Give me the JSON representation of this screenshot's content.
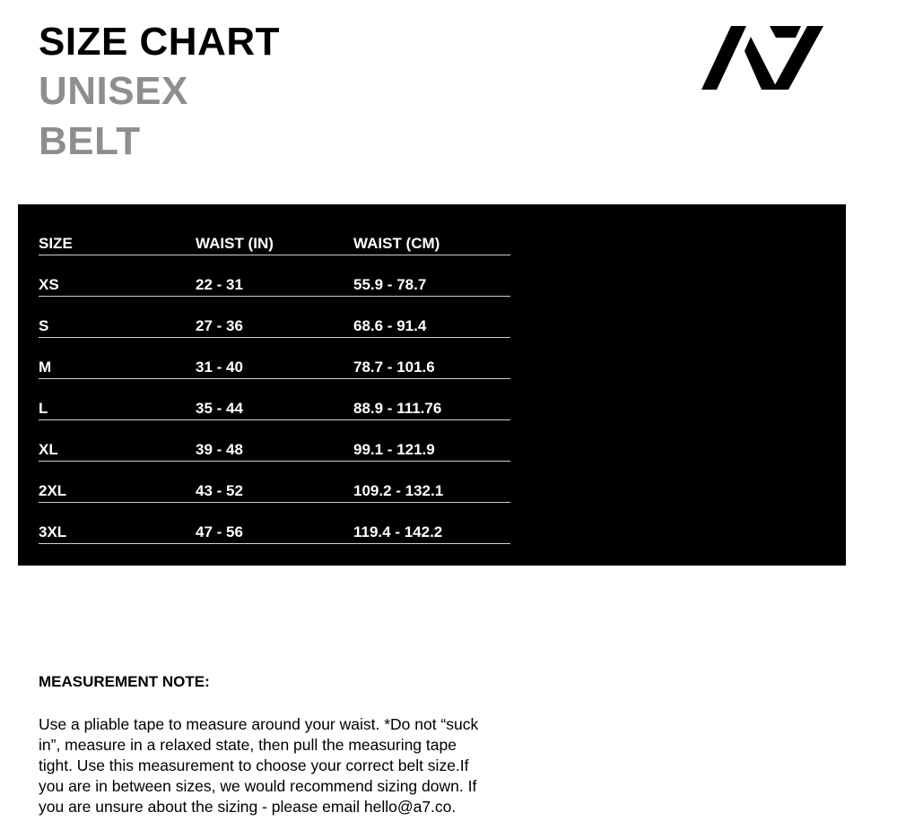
{
  "header": {
    "title_line1": "SIZE CHART",
    "title_line2": "UNISEX",
    "title_line3": "BELT",
    "logo_text": "A7"
  },
  "table": {
    "columns": [
      "SIZE",
      "WAIST (IN)",
      "WAIST (CM)"
    ],
    "rows": [
      [
        "XS",
        "22 - 31",
        "55.9 - 78.7"
      ],
      [
        "S",
        "27 - 36",
        "68.6 - 91.4"
      ],
      [
        "M",
        "31 - 40",
        "78.7 - 101.6"
      ],
      [
        "L",
        "35 - 44",
        "88.9 - 111.76"
      ],
      [
        "XL",
        "39 - 48",
        "99.1 - 121.9"
      ],
      [
        "2XL",
        "43 - 52",
        "109.2 - 132.1"
      ],
      [
        "3XL",
        "47 - 56",
        "119.4 - 142.2"
      ]
    ]
  },
  "note": {
    "heading": "MEASUREMENT NOTE:",
    "lines": [
      "Use a pliable tape to measure around your waist. *Do not “suck",
      "in”, measure in a relaxed state, then pull the measuring tape",
      "tight. Use this measurement to choose your correct belt size.If",
      "you are in between sizes, we would recommend sizing down. If",
      "you are unsure about the sizing - please email hello@a7.co."
    ]
  }
}
